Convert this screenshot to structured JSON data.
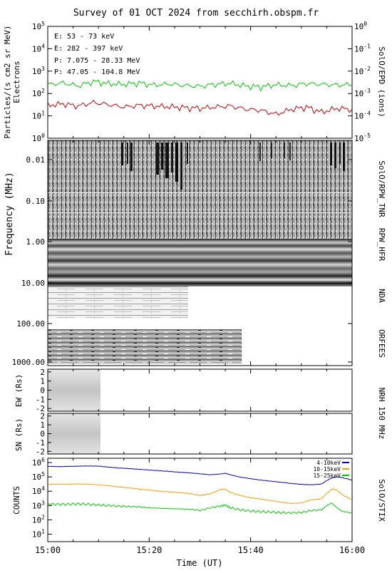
{
  "title": "Survey of 01 OCT 2024 from secchirh.obspm.fr",
  "x_axis": {
    "label": "Time (UT)",
    "ticks": [
      "15:00",
      "15:20",
      "15:40",
      "16:00"
    ],
    "range_minutes": [
      0,
      60
    ]
  },
  "chart_data": [
    {
      "type": "line",
      "panel": "particles",
      "ylabel": "Particles/(s cm2 sr MeV)",
      "ylabel2": "Electrons",
      "right_label": "SolO/EPD (ions)",
      "y_scale": "log",
      "ylim": [
        1,
        100000
      ],
      "left_ticks": [
        "10^0",
        "10^1",
        "10^2",
        "10^3",
        "10^4",
        "10^5"
      ],
      "right_ticks": [
        "10^-5",
        "10^-4",
        "10^-3",
        "10^-2",
        "10^-1",
        "10^0"
      ],
      "legend": [
        "E: 53 - 73 keV",
        "E: 282 - 397 keV",
        "P: 7.075 - 28.33 MeV",
        "P: 47.05 - 104.8 MeV"
      ],
      "legend_colors": [
        "#00cc00",
        "#cc0000",
        "#000000",
        "#0000cc"
      ],
      "x_minutes": [
        0,
        3,
        6,
        9,
        12,
        15,
        18,
        21,
        24,
        27,
        30,
        33,
        36,
        39,
        42,
        45,
        48,
        51,
        54,
        57,
        60
      ],
      "series": [
        {
          "name": "E: 53 - 73 keV",
          "color": "#00cc00",
          "values": [
            250,
            300,
            220,
            350,
            280,
            260,
            300,
            240,
            270,
            230,
            210,
            260,
            290,
            220,
            200,
            250,
            230,
            280,
            260,
            240,
            250
          ]
        },
        {
          "name": "E: 282 - 397 keV",
          "color": "#cc0000",
          "values": [
            30,
            35,
            28,
            40,
            32,
            25,
            30,
            28,
            26,
            24,
            22,
            25,
            28,
            20,
            18,
            12,
            20,
            25,
            15,
            22,
            20
          ]
        }
      ]
    },
    {
      "type": "heatmap",
      "panel": "radio",
      "ylabel": "Frequency (MHz)",
      "ticks": [
        "0.01",
        "0.10",
        "1.00",
        "10.00",
        "100.00",
        "1000.00"
      ],
      "instrument_labels": [
        "SolO/RPW_TNR",
        "RPW_HFR",
        "NDA",
        "ORFEES"
      ]
    },
    {
      "type": "heatmap",
      "panel": "nrh-ew",
      "ylabel": "EW (Rs)",
      "right_label": "NRH 150 MHz",
      "ticks": [
        "2",
        "1",
        "0",
        "-1",
        "-2"
      ],
      "ylim": [
        -2.3,
        2.3
      ],
      "data_end_minute": 10.5
    },
    {
      "type": "heatmap",
      "panel": "nrh-sn",
      "ylabel": "SN (Rs)",
      "ticks": [
        "2",
        "1",
        "0",
        "-1",
        "-2"
      ],
      "ylim": [
        -2.3,
        2.3
      ],
      "data_end_minute": 10.5
    },
    {
      "type": "line",
      "panel": "stix",
      "ylabel": "COUNTS",
      "right_label": "SolO/STIX",
      "y_scale": "log",
      "ylim": [
        3,
        2000000
      ],
      "ticks": [
        "10^1",
        "10^2",
        "10^3",
        "10^4",
        "10^5",
        "10^6"
      ],
      "x_minutes": [
        0,
        2,
        4,
        6,
        8,
        10,
        12,
        14,
        16,
        18,
        20,
        22,
        24,
        26,
        28,
        30,
        32,
        34,
        35,
        36,
        38,
        40,
        42,
        44,
        46,
        48,
        50,
        52,
        54,
        55,
        56,
        57,
        58,
        60
      ],
      "series": [
        {
          "name": "4-10keV",
          "color": "#0000bb",
          "values": [
            550000,
            520000,
            540000,
            560000,
            580000,
            560000,
            480000,
            420000,
            380000,
            340000,
            300000,
            270000,
            240000,
            210000,
            190000,
            165000,
            140000,
            160000,
            180000,
            140000,
            95000,
            75000,
            60000,
            50000,
            42000,
            35000,
            30000,
            28000,
            32000,
            55000,
            85000,
            100000,
            90000,
            60000
          ]
        },
        {
          "name": "10-15keV",
          "color": "#ff9900",
          "values": [
            30000,
            31000,
            30000,
            32000,
            31000,
            28000,
            24000,
            20000,
            17000,
            14000,
            12000,
            10000,
            9000,
            8000,
            7000,
            5000,
            6500,
            13000,
            14000,
            8000,
            5000,
            3500,
            2800,
            2200,
            1700,
            1400,
            1500,
            2500,
            3000,
            7000,
            14000,
            12000,
            6000,
            2500
          ]
        },
        {
          "name": "15-25keV",
          "color": "#00cc00",
          "values": [
            1300,
            1200,
            1250,
            1300,
            1250,
            1100,
            1000,
            900,
            850,
            800,
            700,
            650,
            600,
            580,
            550,
            450,
            700,
            900,
            1100,
            700,
            500,
            420,
            380,
            350,
            320,
            310,
            330,
            450,
            500,
            1000,
            1500,
            700,
            400,
            300
          ]
        }
      ]
    }
  ]
}
